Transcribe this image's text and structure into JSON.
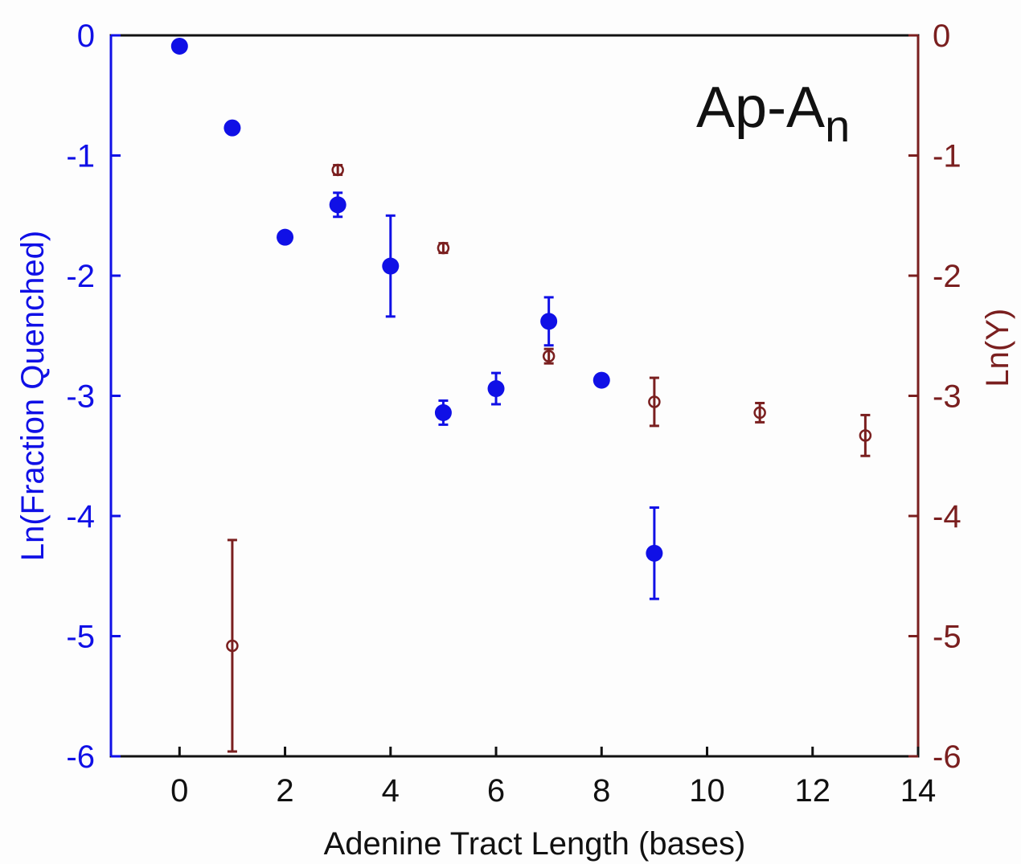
{
  "chart_data": {
    "type": "scatter",
    "xlabel": "Adenine Tract Length (bases)",
    "ylabel_left": "Ln(Fraction Quenched)",
    "ylabel_right": "Ln(Y)",
    "xlim": [
      -1.3,
      14
    ],
    "ylim_left": [
      -6,
      0
    ],
    "ylim_right": [
      -6,
      0
    ],
    "x_ticks": [
      0,
      2,
      4,
      6,
      8,
      10,
      12,
      14
    ],
    "y_ticks_left": [
      0,
      -1,
      -2,
      -3,
      -4,
      -5,
      -6
    ],
    "y_ticks_right": [
      0,
      -1,
      -2,
      -3,
      -4,
      -5,
      -6
    ],
    "annotation": {
      "text": "Ap-A",
      "subscript": "n"
    },
    "colors": {
      "left_series": "#1010e6",
      "right_series": "#7a1f1f",
      "axis": "#111111"
    },
    "series": [
      {
        "axis": "left",
        "marker": "filled-circle",
        "points": [
          {
            "x": 0,
            "y": -0.09,
            "err": null
          },
          {
            "x": 1,
            "y": -0.77,
            "err": null
          },
          {
            "x": 2,
            "y": -1.68,
            "err": null
          },
          {
            "x": 3,
            "y": -1.41,
            "err": 0.1
          },
          {
            "x": 4,
            "y": -1.92,
            "err": 0.42
          },
          {
            "x": 5,
            "y": -3.14,
            "err": 0.1
          },
          {
            "x": 6,
            "y": -2.94,
            "err": 0.13
          },
          {
            "x": 7,
            "y": -2.38,
            "err": 0.2
          },
          {
            "x": 8,
            "y": -2.87,
            "err": null
          },
          {
            "x": 9,
            "y": -4.31,
            "err": 0.38
          }
        ]
      },
      {
        "axis": "right",
        "marker": "open-circle",
        "points": [
          {
            "x": 1,
            "y": -5.08,
            "err": 0.88
          },
          {
            "x": 3,
            "y": -1.12,
            "err": 0.04
          },
          {
            "x": 5,
            "y": -1.77,
            "err": 0.04
          },
          {
            "x": 7,
            "y": -2.67,
            "err": 0.06
          },
          {
            "x": 9,
            "y": -3.05,
            "err": 0.2
          },
          {
            "x": 11,
            "y": -3.14,
            "err": 0.08
          },
          {
            "x": 13,
            "y": -3.33,
            "err": 0.17
          }
        ]
      }
    ]
  }
}
